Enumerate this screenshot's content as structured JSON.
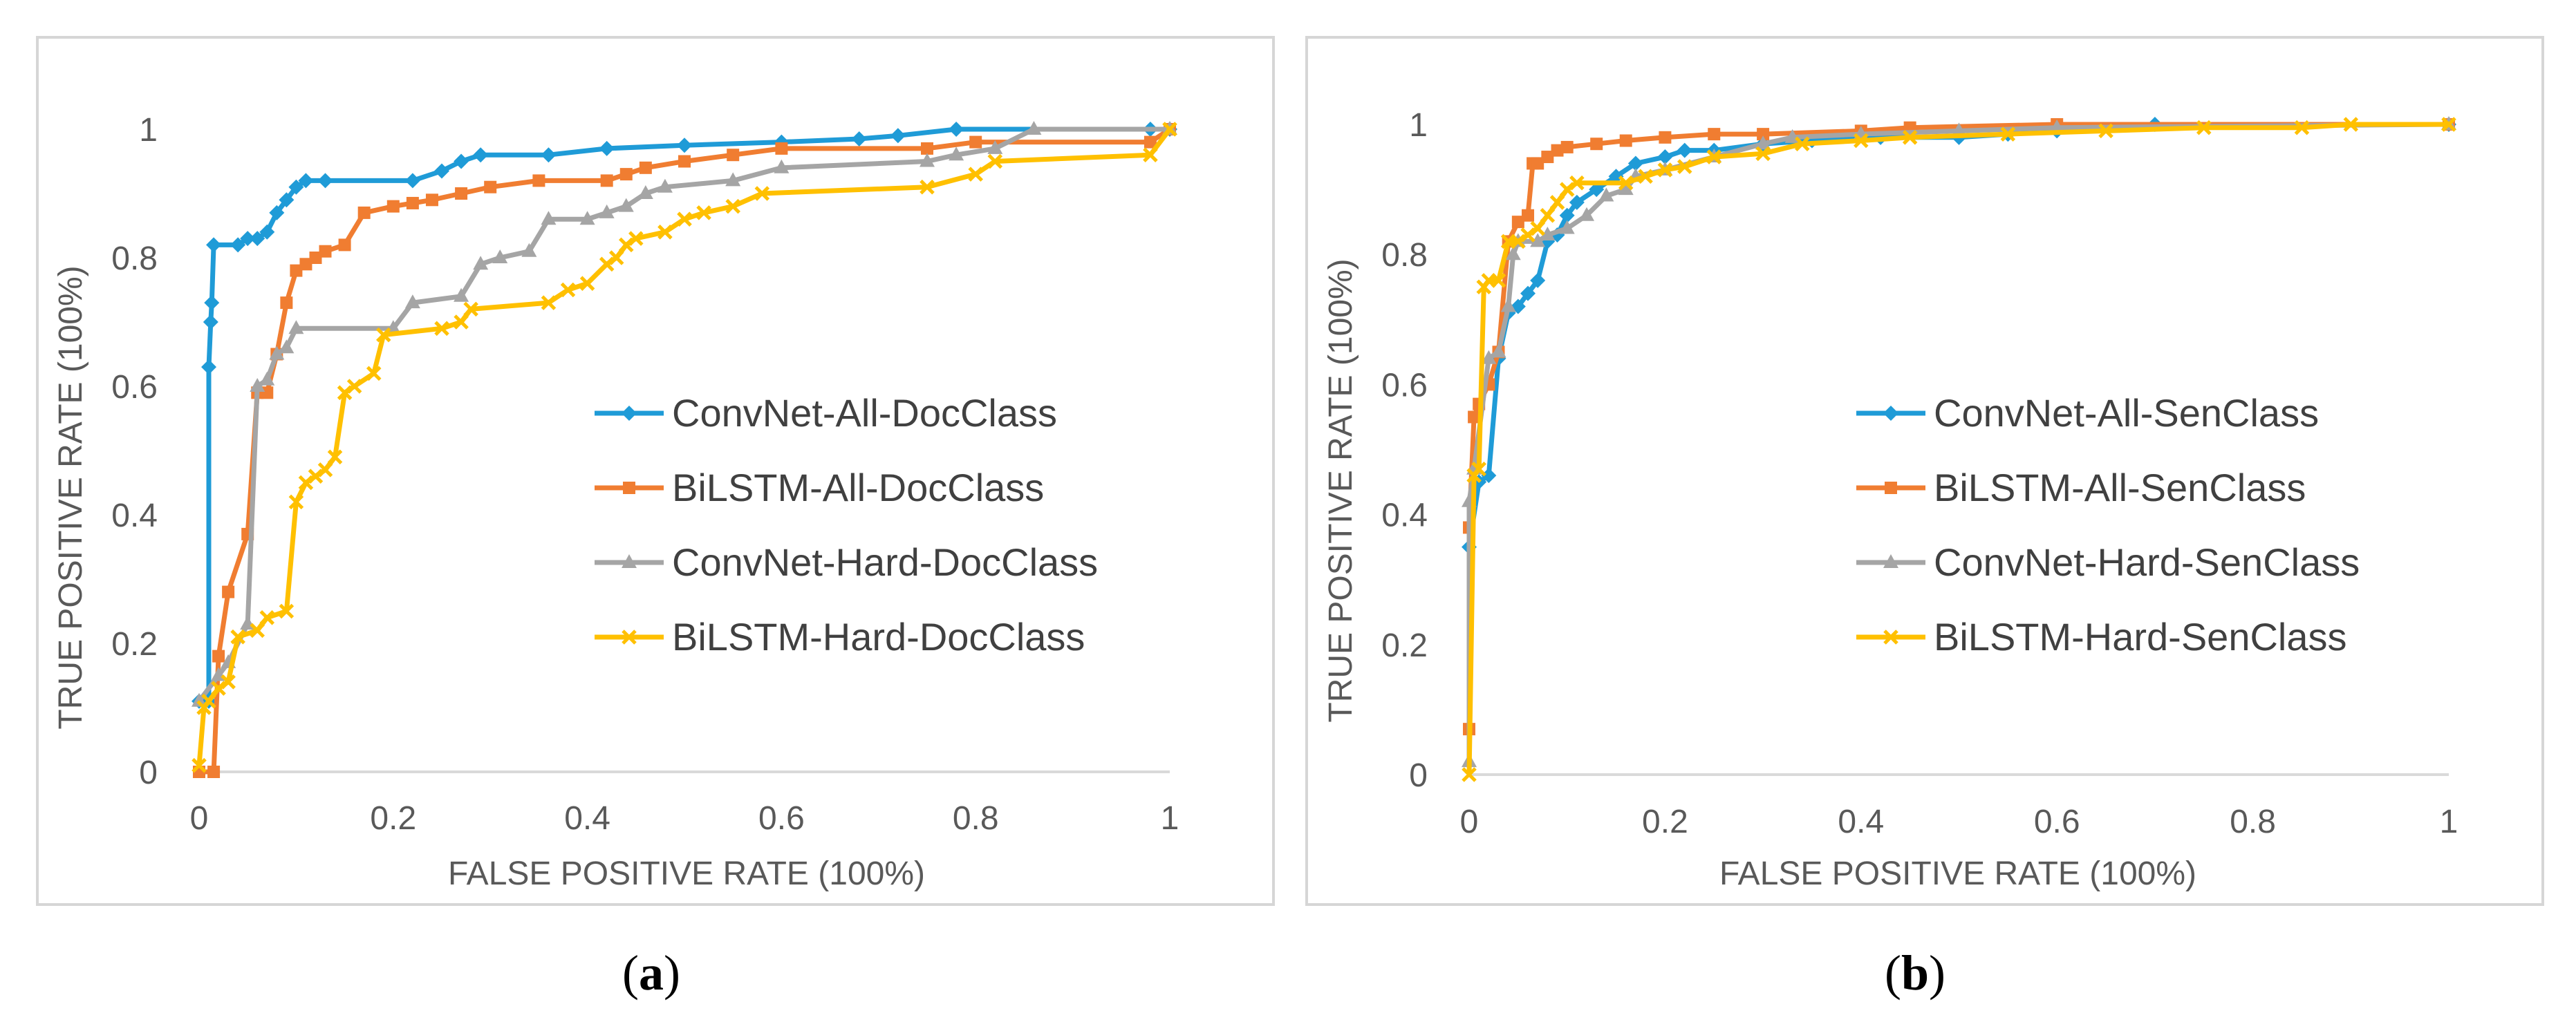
{
  "chart_data": [
    {
      "type": "line",
      "caption_letter": "a",
      "title": "",
      "xlabel": "FALSE POSITIVE RATE (100%)",
      "ylabel": "TRUE POSITIVE RATE (100%)",
      "xlim": [
        0,
        1
      ],
      "ylim": [
        0,
        1
      ],
      "xticks": [
        0,
        0.2,
        0.4,
        0.6,
        0.8,
        1
      ],
      "yticks": [
        0,
        0.2,
        0.4,
        0.6,
        0.8,
        1
      ],
      "xtick_labels": [
        "0",
        "0.2",
        "0.4",
        "0.6",
        "0.8",
        "1"
      ],
      "ytick_labels": [
        "0",
        "0.2",
        "0.4",
        "0.6",
        "0.8",
        "1"
      ],
      "grid": false,
      "legend_position": "center-right",
      "series": [
        {
          "name": "ConvNet-All-DocClass",
          "color": "#1f9bd7",
          "marker": "diamond",
          "points": [
            [
              0,
              0.11
            ],
            [
              0.01,
              0.11
            ],
            [
              0.01,
              0.63
            ],
            [
              0.012,
              0.7
            ],
            [
              0.013,
              0.73
            ],
            [
              0.015,
              0.82
            ],
            [
              0.04,
              0.82
            ],
            [
              0.05,
              0.83
            ],
            [
              0.06,
              0.83
            ],
            [
              0.07,
              0.84
            ],
            [
              0.08,
              0.87
            ],
            [
              0.09,
              0.89
            ],
            [
              0.1,
              0.91
            ],
            [
              0.11,
              0.92
            ],
            [
              0.13,
              0.92
            ],
            [
              0.22,
              0.92
            ],
            [
              0.25,
              0.935
            ],
            [
              0.27,
              0.95
            ],
            [
              0.29,
              0.96
            ],
            [
              0.36,
              0.96
            ],
            [
              0.42,
              0.97
            ],
            [
              0.5,
              0.975
            ],
            [
              0.6,
              0.98
            ],
            [
              0.68,
              0.985
            ],
            [
              0.72,
              0.99
            ],
            [
              0.78,
              1
            ],
            [
              0.98,
              1
            ],
            [
              1,
              1
            ]
          ]
        },
        {
          "name": "BiLSTM-All-DocClass",
          "color": "#f07d31",
          "marker": "square",
          "points": [
            [
              0,
              0
            ],
            [
              0.015,
              0
            ],
            [
              0.02,
              0.18
            ],
            [
              0.03,
              0.28
            ],
            [
              0.05,
              0.37
            ],
            [
              0.06,
              0.59
            ],
            [
              0.07,
              0.59
            ],
            [
              0.08,
              0.65
            ],
            [
              0.09,
              0.73
            ],
            [
              0.1,
              0.78
            ],
            [
              0.11,
              0.79
            ],
            [
              0.12,
              0.8
            ],
            [
              0.13,
              0.81
            ],
            [
              0.15,
              0.82
            ],
            [
              0.17,
              0.87
            ],
            [
              0.2,
              0.88
            ],
            [
              0.22,
              0.885
            ],
            [
              0.24,
              0.89
            ],
            [
              0.27,
              0.9
            ],
            [
              0.3,
              0.91
            ],
            [
              0.35,
              0.92
            ],
            [
              0.42,
              0.92
            ],
            [
              0.44,
              0.93
            ],
            [
              0.46,
              0.94
            ],
            [
              0.5,
              0.95
            ],
            [
              0.55,
              0.96
            ],
            [
              0.6,
              0.97
            ],
            [
              0.75,
              0.97
            ],
            [
              0.8,
              0.98
            ],
            [
              0.98,
              0.98
            ],
            [
              1,
              1
            ]
          ]
        },
        {
          "name": "ConvNet-Hard-DocClass",
          "color": "#a5a5a5",
          "marker": "triangle",
          "points": [
            [
              0,
              0.11
            ],
            [
              0.02,
              0.15
            ],
            [
              0.03,
              0.17
            ],
            [
              0.05,
              0.23
            ],
            [
              0.06,
              0.6
            ],
            [
              0.07,
              0.61
            ],
            [
              0.08,
              0.65
            ],
            [
              0.09,
              0.66
            ],
            [
              0.1,
              0.69
            ],
            [
              0.2,
              0.69
            ],
            [
              0.22,
              0.73
            ],
            [
              0.27,
              0.74
            ],
            [
              0.29,
              0.79
            ],
            [
              0.31,
              0.8
            ],
            [
              0.34,
              0.81
            ],
            [
              0.36,
              0.86
            ],
            [
              0.4,
              0.86
            ],
            [
              0.42,
              0.87
            ],
            [
              0.44,
              0.88
            ],
            [
              0.46,
              0.9
            ],
            [
              0.48,
              0.91
            ],
            [
              0.55,
              0.92
            ],
            [
              0.6,
              0.94
            ],
            [
              0.75,
              0.95
            ],
            [
              0.78,
              0.96
            ],
            [
              0.82,
              0.97
            ],
            [
              0.86,
              1
            ],
            [
              1,
              1
            ]
          ]
        },
        {
          "name": "BiLSTM-Hard-DocClass",
          "color": "#ffc000",
          "marker": "x",
          "points": [
            [
              0,
              0.01
            ],
            [
              0.005,
              0.1
            ],
            [
              0.01,
              0.11
            ],
            [
              0.02,
              0.13
            ],
            [
              0.03,
              0.14
            ],
            [
              0.04,
              0.21
            ],
            [
              0.06,
              0.22
            ],
            [
              0.07,
              0.24
            ],
            [
              0.09,
              0.25
            ],
            [
              0.1,
              0.42
            ],
            [
              0.11,
              0.45
            ],
            [
              0.12,
              0.46
            ],
            [
              0.13,
              0.47
            ],
            [
              0.14,
              0.49
            ],
            [
              0.15,
              0.59
            ],
            [
              0.16,
              0.6
            ],
            [
              0.18,
              0.62
            ],
            [
              0.19,
              0.68
            ],
            [
              0.25,
              0.69
            ],
            [
              0.27,
              0.7
            ],
            [
              0.28,
              0.72
            ],
            [
              0.36,
              0.73
            ],
            [
              0.38,
              0.75
            ],
            [
              0.4,
              0.76
            ],
            [
              0.42,
              0.79
            ],
            [
              0.43,
              0.8
            ],
            [
              0.44,
              0.82
            ],
            [
              0.45,
              0.83
            ],
            [
              0.48,
              0.84
            ],
            [
              0.5,
              0.86
            ],
            [
              0.52,
              0.87
            ],
            [
              0.55,
              0.88
            ],
            [
              0.58,
              0.9
            ],
            [
              0.75,
              0.91
            ],
            [
              0.8,
              0.93
            ],
            [
              0.82,
              0.95
            ],
            [
              0.98,
              0.96
            ],
            [
              1,
              1
            ]
          ]
        }
      ]
    },
    {
      "type": "line",
      "caption_letter": "b",
      "title": "",
      "xlabel": "FALSE POSITIVE RATE (100%)",
      "ylabel": "TRUE POSITIVE RATE (100%)",
      "xlim": [
        0,
        1
      ],
      "ylim": [
        0,
        1
      ],
      "xticks": [
        0,
        0.2,
        0.4,
        0.6,
        0.8,
        1
      ],
      "yticks": [
        0,
        0.2,
        0.4,
        0.6,
        0.8,
        1
      ],
      "xtick_labels": [
        "0",
        "0.2",
        "0.4",
        "0.6",
        "0.8",
        "1"
      ],
      "ytick_labels": [
        "0",
        "0.2",
        "0.4",
        "0.6",
        "0.8",
        "1"
      ],
      "grid": false,
      "legend_position": "center-right",
      "series": [
        {
          "name": "ConvNet-All-SenClass",
          "color": "#1f9bd7",
          "marker": "diamond",
          "points": [
            [
              0,
              0.35
            ],
            [
              0.01,
              0.45
            ],
            [
              0.02,
              0.46
            ],
            [
              0.03,
              0.64
            ],
            [
              0.04,
              0.71
            ],
            [
              0.05,
              0.72
            ],
            [
              0.06,
              0.74
            ],
            [
              0.07,
              0.76
            ],
            [
              0.08,
              0.82
            ],
            [
              0.09,
              0.83
            ],
            [
              0.1,
              0.86
            ],
            [
              0.11,
              0.88
            ],
            [
              0.13,
              0.9
            ],
            [
              0.15,
              0.92
            ],
            [
              0.17,
              0.94
            ],
            [
              0.2,
              0.95
            ],
            [
              0.22,
              0.96
            ],
            [
              0.25,
              0.96
            ],
            [
              0.3,
              0.97
            ],
            [
              0.35,
              0.975
            ],
            [
              0.42,
              0.98
            ],
            [
              0.5,
              0.98
            ],
            [
              0.55,
              0.985
            ],
            [
              0.6,
              0.99
            ],
            [
              0.7,
              1
            ],
            [
              1,
              1
            ]
          ]
        },
        {
          "name": "BiLSTM-All-SenClass",
          "color": "#f07d31",
          "marker": "square",
          "points": [
            [
              0,
              0.07
            ],
            [
              0,
              0.38
            ],
            [
              0.005,
              0.55
            ],
            [
              0.01,
              0.57
            ],
            [
              0.02,
              0.6
            ],
            [
              0.03,
              0.65
            ],
            [
              0.04,
              0.82
            ],
            [
              0.05,
              0.85
            ],
            [
              0.06,
              0.86
            ],
            [
              0.065,
              0.94
            ],
            [
              0.07,
              0.94
            ],
            [
              0.08,
              0.95
            ],
            [
              0.09,
              0.96
            ],
            [
              0.1,
              0.965
            ],
            [
              0.13,
              0.97
            ],
            [
              0.16,
              0.975
            ],
            [
              0.2,
              0.98
            ],
            [
              0.25,
              0.985
            ],
            [
              0.3,
              0.985
            ],
            [
              0.4,
              0.99
            ],
            [
              0.45,
              0.995
            ],
            [
              0.6,
              1
            ],
            [
              1,
              1
            ]
          ]
        },
        {
          "name": "ConvNet-Hard-SenClass",
          "color": "#a5a5a5",
          "marker": "triangle",
          "points": [
            [
              0,
              0.02
            ],
            [
              0,
              0.42
            ],
            [
              0.005,
              0.47
            ],
            [
              0.02,
              0.64
            ],
            [
              0.03,
              0.65
            ],
            [
              0.04,
              0.72
            ],
            [
              0.045,
              0.8
            ],
            [
              0.05,
              0.82
            ],
            [
              0.07,
              0.82
            ],
            [
              0.08,
              0.83
            ],
            [
              0.1,
              0.84
            ],
            [
              0.12,
              0.86
            ],
            [
              0.14,
              0.89
            ],
            [
              0.16,
              0.9
            ],
            [
              0.17,
              0.92
            ],
            [
              0.2,
              0.93
            ],
            [
              0.25,
              0.95
            ],
            [
              0.3,
              0.97
            ],
            [
              0.33,
              0.98
            ],
            [
              0.4,
              0.985
            ],
            [
              0.5,
              0.99
            ],
            [
              0.6,
              0.995
            ],
            [
              1,
              1
            ]
          ]
        },
        {
          "name": "BiLSTM-Hard-SenClass",
          "color": "#ffc000",
          "marker": "x",
          "points": [
            [
              0,
              0
            ],
            [
              0.005,
              0.46
            ],
            [
              0.01,
              0.47
            ],
            [
              0.015,
              0.75
            ],
            [
              0.02,
              0.76
            ],
            [
              0.03,
              0.76
            ],
            [
              0.04,
              0.82
            ],
            [
              0.05,
              0.82
            ],
            [
              0.06,
              0.83
            ],
            [
              0.07,
              0.84
            ],
            [
              0.08,
              0.86
            ],
            [
              0.09,
              0.88
            ],
            [
              0.1,
              0.9
            ],
            [
              0.11,
              0.91
            ],
            [
              0.16,
              0.91
            ],
            [
              0.18,
              0.92
            ],
            [
              0.2,
              0.93
            ],
            [
              0.22,
              0.935
            ],
            [
              0.25,
              0.95
            ],
            [
              0.3,
              0.955
            ],
            [
              0.34,
              0.97
            ],
            [
              0.4,
              0.975
            ],
            [
              0.45,
              0.98
            ],
            [
              0.55,
              0.985
            ],
            [
              0.65,
              0.99
            ],
            [
              0.75,
              0.995
            ],
            [
              0.85,
              0.995
            ],
            [
              0.9,
              1
            ],
            [
              1,
              1
            ]
          ]
        }
      ]
    }
  ]
}
